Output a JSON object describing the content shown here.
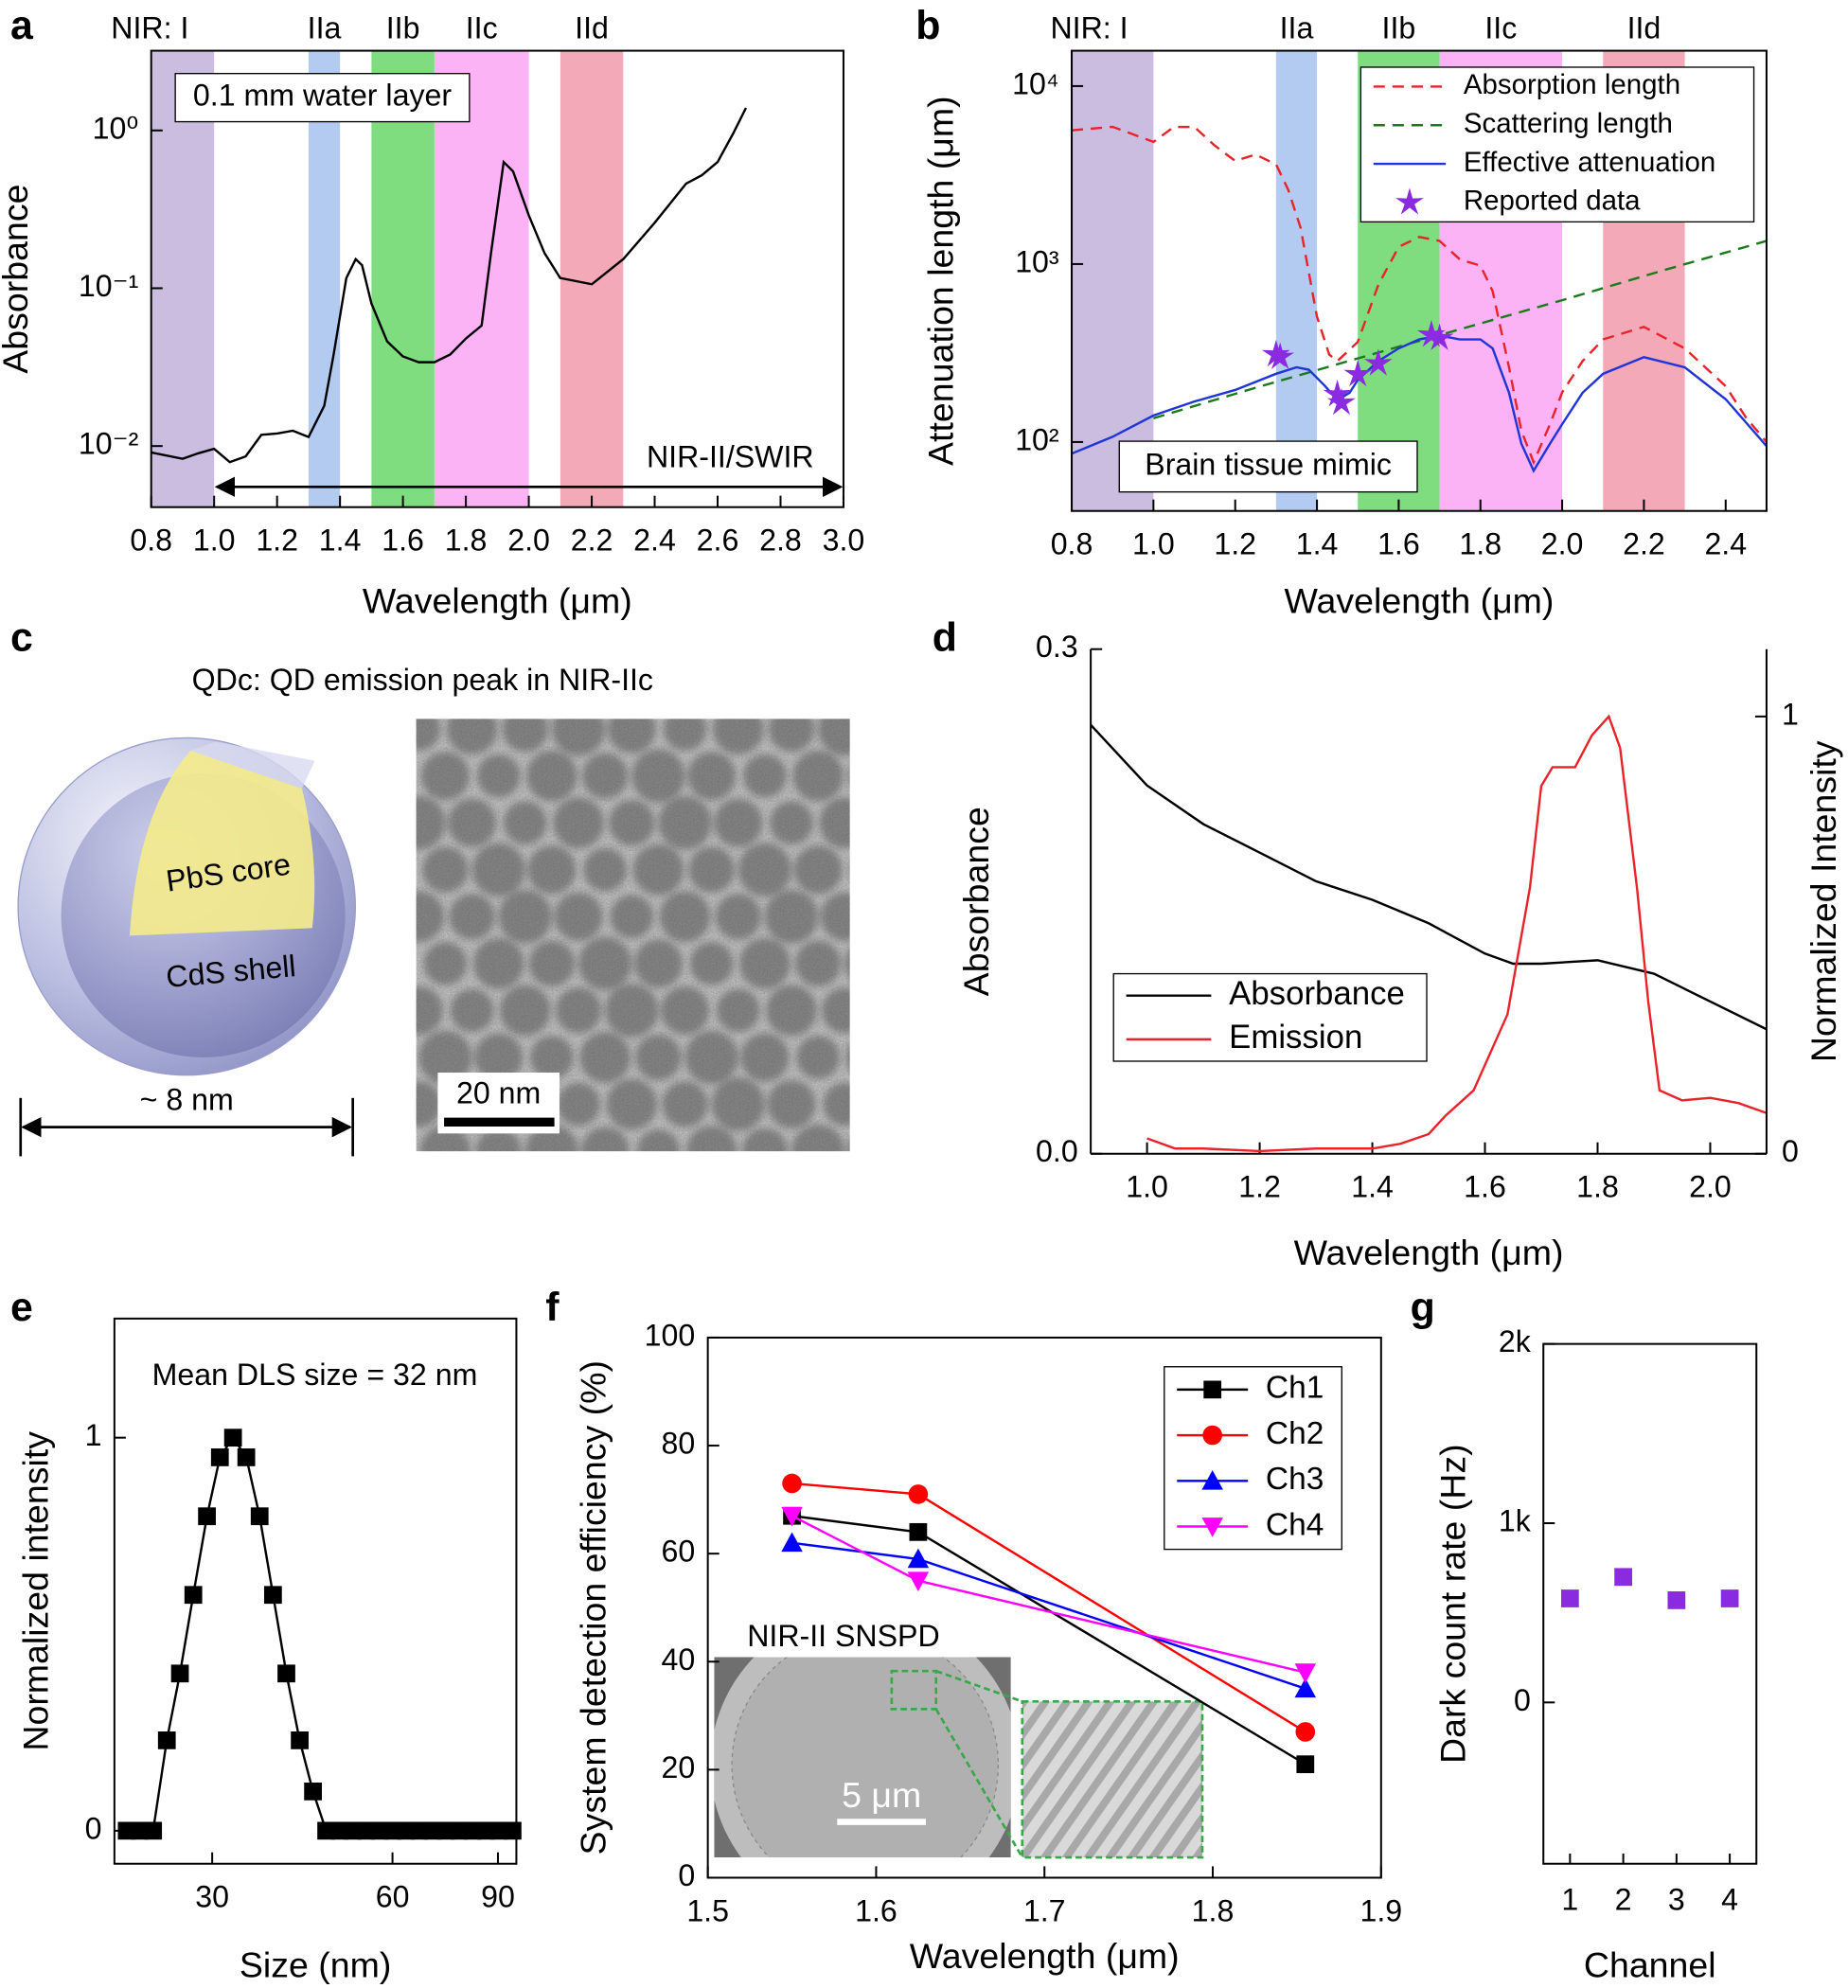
{
  "chart_data": [
    {
      "type": "line",
      "label": "a",
      "x_label": "Wavelength (μm)",
      "y_label": "Absorbance",
      "ylog": true,
      "xlim": [
        0.8,
        3.0
      ],
      "xticks": [
        0.8,
        {
          "value": 1.0,
          "label": "1.0"
        },
        1.2,
        1.4,
        1.6,
        1.8,
        {
          "value": 2.0,
          "label": "2.0"
        },
        2.2,
        2.4,
        2.6,
        2.8,
        {
          "value": 3.0,
          "label": "3.0"
        }
      ],
      "ylim": [
        0.0041,
        3.2
      ],
      "yticks": [
        {
          "value": 0.01,
          "label": "10⁻²"
        },
        {
          "value": 0.1,
          "label": "10⁻¹"
        },
        {
          "value": 1,
          "label": "10⁰"
        }
      ],
      "bands": [
        {
          "label": "NIR: I",
          "range": [
            0.8,
            1.0
          ],
          "color": "#cbbde0"
        },
        {
          "label": "IIa",
          "range": [
            1.3,
            1.4
          ],
          "color": "#b4cbf1"
        },
        {
          "label": "IIb",
          "range": [
            1.5,
            1.7
          ],
          "color": "#7fdc7f"
        },
        {
          "label": "IIc",
          "range": [
            1.7,
            2.0
          ],
          "color": "#fbb3f6"
        },
        {
          "label": "IId",
          "range": [
            2.1,
            2.3
          ],
          "color": "#f4a9b9"
        }
      ],
      "annotation": "0.1 mm water layer",
      "arrow": {
        "label": "NIR-II/SWIR",
        "from": 1.0,
        "to": 3.0
      },
      "color": "#000000",
      "x": [
        0.8,
        0.9,
        0.95,
        1.0,
        1.05,
        1.1,
        1.15,
        1.2,
        1.25,
        1.3,
        1.35,
        1.38,
        1.42,
        1.45,
        1.47,
        1.5,
        1.55,
        1.6,
        1.65,
        1.7,
        1.75,
        1.8,
        1.85,
        1.88,
        1.92,
        1.95,
        2.0,
        2.05,
        2.1,
        2.2,
        2.3,
        2.4,
        2.5,
        2.55,
        2.6,
        2.65,
        2.69
      ],
      "values": [
        0.0091,
        0.0083,
        0.009,
        0.0096,
        0.0079,
        0.0086,
        0.0118,
        0.012,
        0.0125,
        0.0114,
        0.018,
        0.038,
        0.116,
        0.153,
        0.14,
        0.08,
        0.046,
        0.037,
        0.034,
        0.034,
        0.038,
        0.048,
        0.058,
        0.167,
        0.63,
        0.55,
        0.29,
        0.167,
        0.116,
        0.106,
        0.153,
        0.26,
        0.46,
        0.52,
        0.63,
        0.96,
        1.39
      ]
    },
    {
      "type": "line",
      "label": "b",
      "x_label": "Wavelength (μm)",
      "y_label": "Attenuation length (μm)",
      "ylog": true,
      "xlim": [
        0.8,
        2.5
      ],
      "xticks": [
        0.8,
        {
          "value": 1.0,
          "label": "1.0"
        },
        1.2,
        1.4,
        1.6,
        1.8,
        {
          "value": 2.0,
          "label": "2.0"
        },
        2.2,
        2.4
      ],
      "ylim": [
        41,
        15800
      ],
      "yticks": [
        {
          "value": 100,
          "label": "10²"
        },
        {
          "value": 1000,
          "label": "10³"
        },
        {
          "value": 10000,
          "label": "10⁴"
        }
      ],
      "bands": [
        {
          "label": "NIR: I",
          "range": [
            0.8,
            1.0
          ],
          "color": "#cbbde0"
        },
        {
          "label": "IIa",
          "range": [
            1.3,
            1.4
          ],
          "color": "#b4cbf1"
        },
        {
          "label": "IIb",
          "range": [
            1.5,
            1.7
          ],
          "color": "#7fdc7f"
        },
        {
          "label": "IIc",
          "range": [
            1.7,
            2.0
          ],
          "color": "#fbb3f6"
        },
        {
          "label": "IId",
          "range": [
            2.1,
            2.3
          ],
          "color": "#f4a9b9"
        }
      ],
      "annotation": "Brain tissue mimic",
      "legend": "top right",
      "series": [
        {
          "name": "Absorption length",
          "color": "#e8232a",
          "dash": true,
          "x": [
            0.8,
            0.9,
            1.0,
            1.05,
            1.1,
            1.15,
            1.2,
            1.25,
            1.3,
            1.33,
            1.36,
            1.4,
            1.43,
            1.45,
            1.5,
            1.55,
            1.6,
            1.65,
            1.7,
            1.75,
            1.8,
            1.83,
            1.87,
            1.9,
            1.93,
            1.97,
            2.0,
            2.05,
            2.1,
            2.2,
            2.3,
            2.4,
            2.45,
            2.5
          ],
          "values": [
            5640,
            5910,
            4860,
            5900,
            5900,
            4630,
            3800,
            4120,
            3630,
            2610,
            1600,
            507,
            310,
            285,
            365,
            764,
            1250,
            1420,
            1350,
            1060,
            980,
            703,
            263,
            116,
            77,
            126,
            190,
            285,
            377,
            444,
            336,
            206,
            137,
            100
          ]
        },
        {
          "name": "Scattering length",
          "color": "#1b7a1b",
          "dash": true,
          "x": [
            1.0,
            1.25,
            1.5,
            1.75,
            2.0,
            2.25,
            2.5
          ],
          "values": [
            136,
            202,
            295,
            430,
            626,
            925,
            1350
          ]
        },
        {
          "name": "Effective attenuation",
          "color": "#1f35d8",
          "x": [
            0.8,
            0.9,
            1.0,
            1.1,
            1.2,
            1.3,
            1.35,
            1.38,
            1.42,
            1.45,
            1.48,
            1.5,
            1.55,
            1.6,
            1.65,
            1.7,
            1.75,
            1.8,
            1.83,
            1.87,
            1.9,
            1.93,
            1.97,
            2.0,
            2.05,
            2.1,
            2.2,
            2.3,
            2.4,
            2.5
          ],
          "values": [
            86,
            107,
            141,
            169,
            196,
            242,
            263,
            255,
            206,
            172,
            189,
            223,
            285,
            336,
            377,
            396,
            377,
            377,
            336,
            189,
            98,
            69,
            98,
            126,
            189,
            242,
            300,
            263,
            174,
            95
          ]
        },
        {
          "name": "Reported data",
          "color": "#8a2be2",
          "line": false,
          "marker": "star",
          "x": [
            1.3,
            1.31,
            1.45,
            1.46,
            1.5,
            1.55,
            1.68,
            1.7
          ],
          "values": [
            310,
            300,
            185,
            166,
            240,
            276,
            400,
            383
          ]
        }
      ]
    },
    {
      "type": "illustration",
      "label": "c",
      "title": "QDc: QD emission peak in NIR-IIc",
      "core_label": "PbS core",
      "shell_label": "CdS shell",
      "size_label": "~ 8 nm",
      "scale_bar": "20 nm"
    },
    {
      "type": "line",
      "label": "d",
      "x_label": "Wavelength (μm)",
      "y_label": "Absorbance",
      "y2_label": "Normalized Intensity",
      "xlim": [
        0.9,
        2.1
      ],
      "xticks": [
        {
          "value": 1.0,
          "label": "1.0"
        },
        1.2,
        1.4,
        1.6,
        1.8,
        {
          "value": 2.0,
          "label": "2.0"
        }
      ],
      "ylim": [
        0,
        0.3
      ],
      "yticks": [
        {
          "value": 0,
          "label": "0.0"
        },
        0.3
      ],
      "y2lim": [
        0,
        1.154
      ],
      "y2ticks": [
        0,
        1
      ],
      "legend": "center left",
      "series": [
        {
          "name": "Absorbance",
          "color": "#000000",
          "x": [
            0.9,
            1.0,
            1.1,
            1.2,
            1.3,
            1.4,
            1.5,
            1.6,
            1.65,
            1.7,
            1.8,
            1.9,
            2.0,
            2.1
          ],
          "values": [
            0.255,
            0.219,
            0.196,
            0.179,
            0.162,
            0.151,
            0.137,
            0.119,
            0.113,
            0.113,
            0.115,
            0.107,
            0.0905,
            0.074
          ]
        },
        {
          "name": "Emission",
          "color": "#e8232a",
          "axis": "y2",
          "x": [
            1.0,
            1.05,
            1.1,
            1.2,
            1.3,
            1.4,
            1.45,
            1.5,
            1.53,
            1.58,
            1.64,
            1.68,
            1.7,
            1.72,
            1.76,
            1.79,
            1.82,
            1.84,
            1.87,
            1.89,
            1.91,
            1.95,
            2.0,
            2.05,
            2.1
          ],
          "values": [
            0.035,
            0.012,
            0.012,
            0.006,
            0.012,
            0.012,
            0.023,
            0.045,
            0.087,
            0.145,
            0.319,
            0.609,
            0.841,
            0.884,
            0.884,
            0.957,
            1.0,
            0.928,
            0.609,
            0.348,
            0.145,
            0.122,
            0.128,
            0.116,
            0.093
          ]
        }
      ]
    },
    {
      "type": "line",
      "label": "e",
      "x_label": "Size (nm)",
      "y_label": "Normalized intensity",
      "xlog": true,
      "xlim": [
        20.6,
        96.6
      ],
      "xticks": [
        30,
        60,
        90
      ],
      "ylim": [
        -0.084,
        1.303
      ],
      "yticks": [
        0,
        1
      ],
      "annotation": "Mean DLS size = 32 nm",
      "color": "#000000",
      "marker": "square",
      "x": [
        21.6,
        22.7,
        23.9,
        25.2,
        26.5,
        27.9,
        29.4,
        30.9,
        32.5,
        34.2,
        36.0,
        37.9,
        39.9,
        42.0,
        44.2,
        46.5,
        49.0,
        51.5,
        54.2,
        57.1,
        60.1,
        63.2,
        66.5,
        70.0,
        73.7,
        77.6,
        81.6,
        85.9,
        90.4,
        95.2
      ],
      "values": [
        0,
        0,
        0,
        0.23,
        0.4,
        0.6,
        0.8,
        0.95,
        1,
        0.95,
        0.8,
        0.6,
        0.4,
        0.23,
        0.1,
        0,
        0,
        0,
        0,
        0,
        0,
        0,
        0,
        0,
        0,
        0,
        0,
        0,
        0,
        0
      ]
    },
    {
      "type": "line",
      "label": "f",
      "x_label": "Wavelength (μm)",
      "y_label": "System detection efficiency (%)",
      "xlim": [
        1.5,
        1.9
      ],
      "xticks": [
        1.5,
        1.6,
        1.7,
        1.8,
        1.9
      ],
      "ylim": [
        0,
        100
      ],
      "yticks": [
        0,
        20,
        40,
        60,
        80,
        100
      ],
      "legend": "top right",
      "inset_title": "NIR-II SNSPD",
      "inset_scale": "5 μm",
      "series": [
        {
          "name": "Ch1",
          "color": "#000000",
          "marker": "square",
          "x": [
            1.55,
            1.625,
            1.855
          ],
          "values": [
            67,
            64,
            21
          ]
        },
        {
          "name": "Ch2",
          "color": "#ff0000",
          "marker": "circle",
          "x": [
            1.55,
            1.625,
            1.855
          ],
          "values": [
            73,
            71,
            27
          ]
        },
        {
          "name": "Ch3",
          "color": "#0000ff",
          "marker": "triangle",
          "x": [
            1.55,
            1.625,
            1.855
          ],
          "values": [
            62,
            59,
            35
          ]
        },
        {
          "name": "Ch4",
          "color": "#ff00ff",
          "marker": "triangle-down",
          "x": [
            1.55,
            1.625,
            1.855
          ],
          "values": [
            67,
            55,
            38
          ]
        }
      ]
    },
    {
      "type": "scatter",
      "label": "g",
      "x_label": "Channel",
      "y_label": "Dark count rate (Hz)",
      "categories": [
        "1",
        "2",
        "3",
        "4"
      ],
      "values": [
        580,
        700,
        570,
        580
      ],
      "color": "#8a2be2",
      "marker": "square",
      "ylim": [
        -900,
        2000
      ],
      "yticks": [
        0,
        {
          "value": 1000,
          "label": "1k"
        },
        {
          "value": 2000,
          "label": "2k"
        }
      ]
    }
  ]
}
